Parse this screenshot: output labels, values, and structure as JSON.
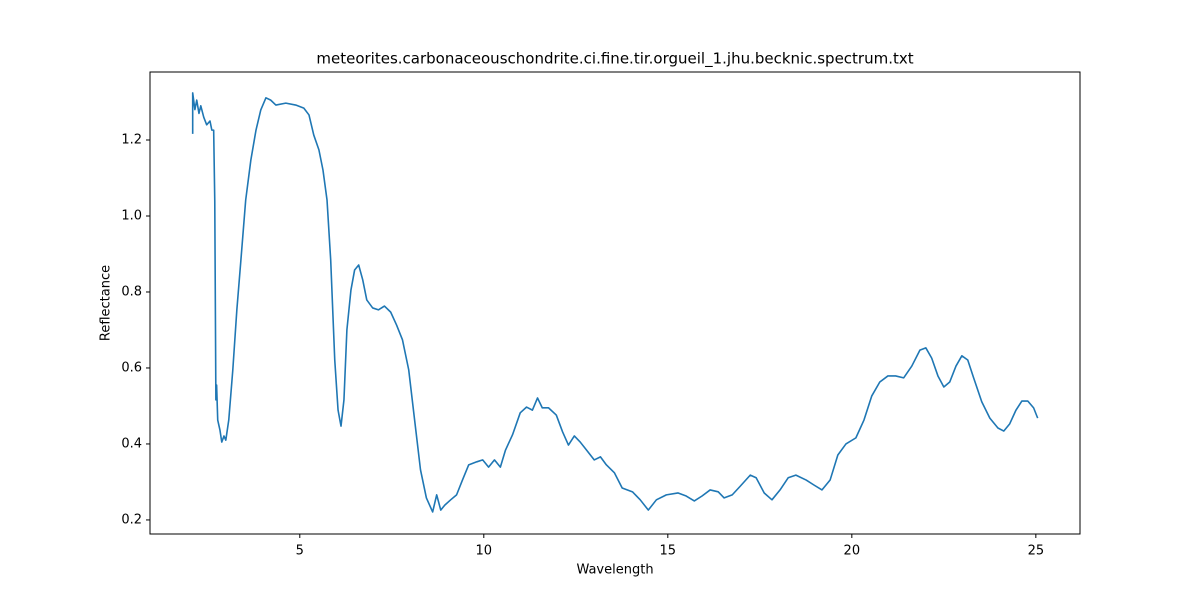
{
  "chart_data": {
    "type": "line",
    "title": "meteorites.carbonaceouschondrite.ci.fine.tir.orgueil_1.jhu.becknic.spectrum.txt",
    "x_label": "Wavelength",
    "y_label": "Reflectance",
    "xlim": [
      0.93,
      26.2
    ],
    "ylim": [
      0.163,
      1.379
    ],
    "xticks": [
      5,
      10,
      15,
      20,
      25
    ],
    "yticks": [
      0.2,
      0.4,
      0.6,
      0.8,
      {
        "value": 1,
        "label": "1.0"
      },
      1.2
    ],
    "grid": false,
    "series": [
      {
        "color": "#1f77b4",
        "x": [
          2.09,
          2.09,
          2.15,
          2.2,
          2.26,
          2.31,
          2.39,
          2.47,
          2.56,
          2.61,
          2.66,
          2.69,
          2.72,
          2.74,
          2.77,
          2.83,
          2.88,
          2.94,
          2.99,
          3.07,
          3.18,
          3.29,
          3.4,
          3.53,
          3.67,
          3.81,
          3.94,
          4.08,
          4.21,
          4.35,
          4.62,
          4.89,
          5.11,
          5.25,
          5.38,
          5.52,
          5.63,
          5.74,
          5.84,
          5.95,
          6.04,
          6.12,
          6.2,
          6.28,
          6.39,
          6.49,
          6.6,
          6.71,
          6.82,
          6.98,
          7.14,
          7.3,
          7.47,
          7.63,
          7.79,
          7.96,
          8.12,
          8.28,
          8.44,
          8.61,
          8.72,
          8.83,
          8.94,
          9.1,
          9.26,
          9.42,
          9.59,
          9.81,
          9.97,
          10.13,
          10.29,
          10.45,
          10.59,
          10.78,
          10.99,
          11.16,
          11.32,
          11.46,
          11.59,
          11.76,
          11.97,
          12.14,
          12.3,
          12.46,
          12.62,
          12.79,
          13.0,
          13.17,
          13.33,
          13.55,
          13.76,
          14.04,
          14.25,
          14.47,
          14.69,
          14.96,
          15.28,
          15.5,
          15.72,
          15.93,
          16.15,
          16.37,
          16.53,
          16.75,
          16.97,
          17.24,
          17.4,
          17.62,
          17.83,
          18.05,
          18.27,
          18.48,
          18.76,
          18.97,
          19.19,
          19.41,
          19.62,
          19.84,
          20.11,
          20.33,
          20.54,
          20.76,
          20.98,
          21.19,
          21.41,
          21.63,
          21.85,
          22.01,
          22.17,
          22.34,
          22.5,
          22.66,
          22.83,
          22.99,
          23.15,
          23.31,
          23.53,
          23.75,
          23.97,
          24.13,
          24.29,
          24.46,
          24.62,
          24.78,
          24.94,
          25.05
        ],
        "values": [
          1.216,
          1.324,
          1.28,
          1.305,
          1.27,
          1.29,
          1.26,
          1.24,
          1.25,
          1.226,
          1.226,
          1.04,
          0.516,
          0.555,
          0.463,
          0.437,
          0.405,
          0.421,
          0.41,
          0.463,
          0.595,
          0.753,
          0.884,
          1.042,
          1.147,
          1.226,
          1.279,
          1.311,
          1.305,
          1.292,
          1.297,
          1.292,
          1.284,
          1.266,
          1.213,
          1.174,
          1.121,
          1.042,
          0.884,
          0.621,
          0.489,
          0.447,
          0.516,
          0.7,
          0.805,
          0.858,
          0.871,
          0.832,
          0.779,
          0.758,
          0.753,
          0.763,
          0.747,
          0.713,
          0.674,
          0.595,
          0.463,
          0.332,
          0.258,
          0.221,
          0.266,
          0.226,
          0.239,
          0.253,
          0.266,
          0.305,
          0.345,
          0.353,
          0.358,
          0.339,
          0.358,
          0.339,
          0.384,
          0.424,
          0.482,
          0.497,
          0.489,
          0.521,
          0.495,
          0.495,
          0.476,
          0.432,
          0.397,
          0.421,
          0.405,
          0.384,
          0.358,
          0.366,
          0.345,
          0.324,
          0.284,
          0.274,
          0.253,
          0.226,
          0.253,
          0.266,
          0.271,
          0.263,
          0.25,
          0.263,
          0.279,
          0.274,
          0.258,
          0.266,
          0.289,
          0.318,
          0.311,
          0.271,
          0.253,
          0.279,
          0.311,
          0.318,
          0.305,
          0.292,
          0.279,
          0.305,
          0.371,
          0.4,
          0.416,
          0.463,
          0.526,
          0.563,
          0.579,
          0.579,
          0.574,
          0.605,
          0.647,
          0.653,
          0.626,
          0.579,
          0.55,
          0.563,
          0.605,
          0.632,
          0.621,
          0.574,
          0.511,
          0.468,
          0.442,
          0.434,
          0.453,
          0.489,
          0.513,
          0.513,
          0.495,
          0.468
        ]
      }
    ]
  }
}
